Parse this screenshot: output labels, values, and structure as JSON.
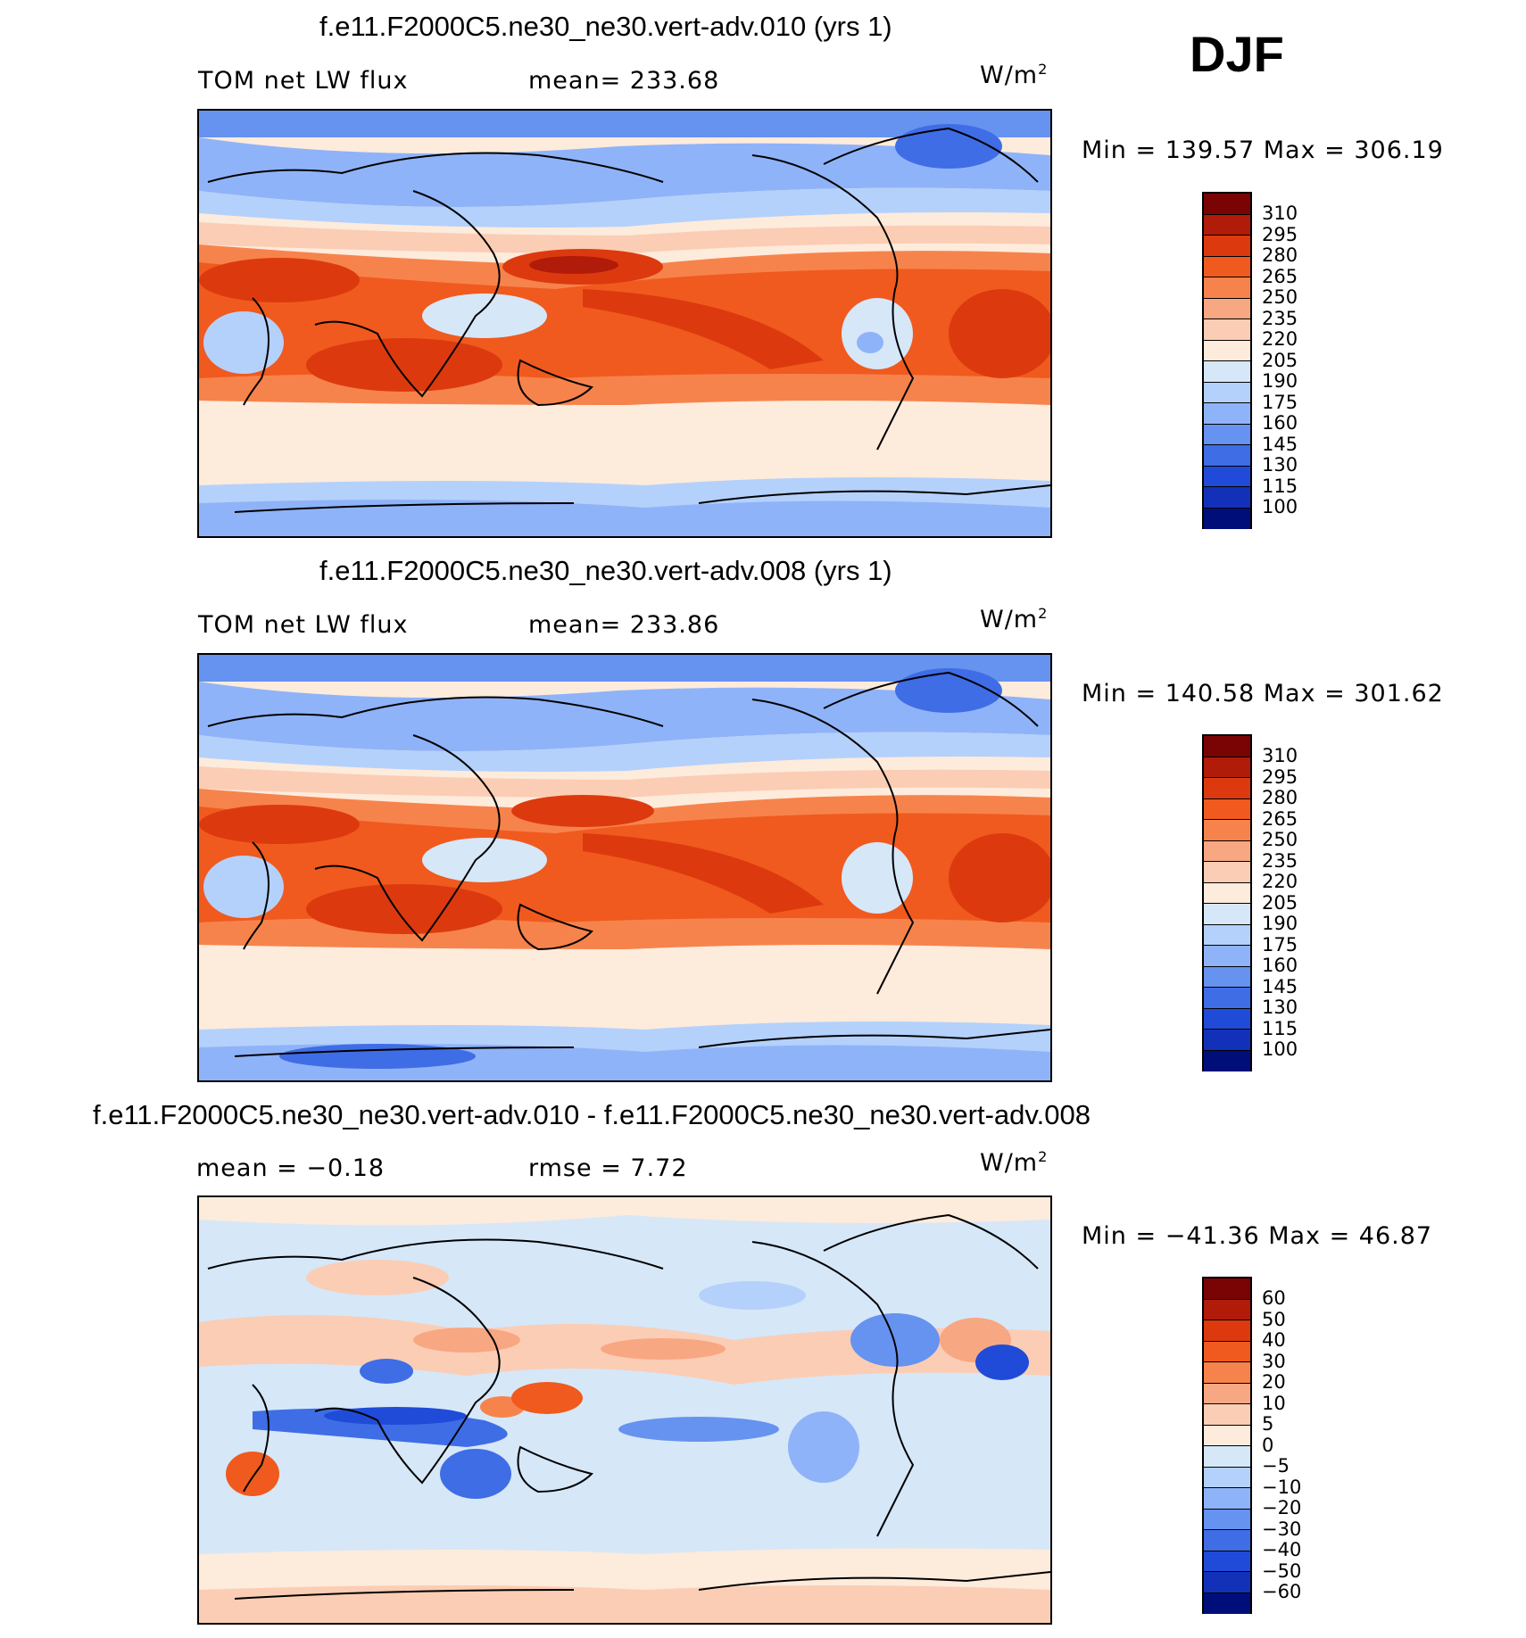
{
  "season": "DJF",
  "colors": {
    "abs_levels": [
      "#7a0403",
      "#b11b09",
      "#dc3a0e",
      "#f05a1e",
      "#f7834c",
      "#f8a783",
      "#fbcdb4",
      "#fdebdc",
      "#d6e7f8",
      "#b4d1fb",
      "#8fb3f8",
      "#6692f0",
      "#3f6de6",
      "#1f4bd8",
      "#1331b8",
      "#000e7a"
    ],
    "diff_levels": [
      "#7a0403",
      "#b11b09",
      "#dc3a0e",
      "#f05a1e",
      "#f7834c",
      "#f8a783",
      "#fbcdb4",
      "#fdebdc",
      "#d6e7f8",
      "#b4d1fb",
      "#8fb3f8",
      "#6692f0",
      "#3f6de6",
      "#1f4bd8",
      "#1331b8",
      "#000e7a"
    ]
  },
  "panels": [
    {
      "title": "f.e11.F2000C5.ne30_ne30.vert-adv.010 (yrs 1)",
      "left_label": "TOM net LW flux",
      "center_label": "mean= 233.68",
      "units": "W/m",
      "units_sup": "2",
      "minmax": "Min = 139.57 Max = 306.19",
      "colorbar_labels": [
        "310",
        "295",
        "280",
        "265",
        "250",
        "235",
        "220",
        "205",
        "190",
        "175",
        "160",
        "145",
        "130",
        "115",
        "100"
      ]
    },
    {
      "title": "f.e11.F2000C5.ne30_ne30.vert-adv.008 (yrs 1)",
      "left_label": "TOM net LW flux",
      "center_label": "mean= 233.86",
      "units": "W/m",
      "units_sup": "2",
      "minmax": "Min = 140.58 Max = 301.62",
      "colorbar_labels": [
        "310",
        "295",
        "280",
        "265",
        "250",
        "235",
        "220",
        "205",
        "190",
        "175",
        "160",
        "145",
        "130",
        "115",
        "100"
      ]
    },
    {
      "title": "f.e11.F2000C5.ne30_ne30.vert-adv.010 - f.e11.F2000C5.ne30_ne30.vert-adv.008",
      "left_label": "mean =   −0.18",
      "center_label": "rmse =     7.72",
      "units": "W/m",
      "units_sup": "2",
      "minmax": "Min = −41.36 Max =   46.87",
      "colorbar_labels": [
        "60",
        "50",
        "40",
        "30",
        "20",
        "10",
        "5",
        "0",
        "−5",
        "−10",
        "−20",
        "−30",
        "−40",
        "−50",
        "−60"
      ]
    }
  ]
}
